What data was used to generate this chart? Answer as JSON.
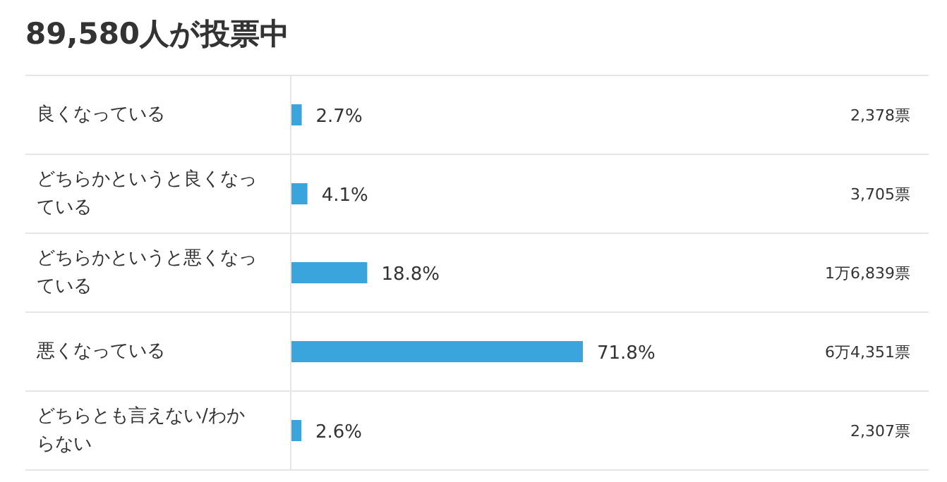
{
  "chart_data": {
    "type": "bar",
    "orientation": "horizontal",
    "title": "89,580人が投票中",
    "categories": [
      "良くなっている",
      "どちらかというと良くなっている",
      "どちらかというと悪くなっている",
      "悪くなっている",
      "どちらとも言えない/わからない"
    ],
    "values": [
      2.7,
      4.1,
      18.8,
      71.8,
      2.6
    ],
    "value_labels": [
      "2.7%",
      "4.1%",
      "18.8%",
      "71.8%",
      "2.6%"
    ],
    "color": "#39a5dc",
    "tick_labels": "y",
    "annotations": [
      "2,378票",
      "3,705票",
      "1万6,839票",
      "6万4,351票",
      "2,307票"
    ]
  }
}
